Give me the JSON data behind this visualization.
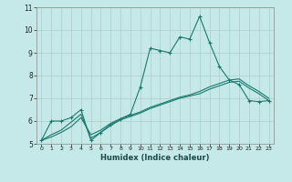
{
  "xlabel": "Humidex (Indice chaleur)",
  "background_color": "#c5e8e8",
  "grid_color": "#b0cccc",
  "line_color": "#1a7a6e",
  "xlim": [
    -0.5,
    23.5
  ],
  "ylim": [
    5,
    11
  ],
  "xticks": [
    0,
    1,
    2,
    3,
    4,
    5,
    6,
    7,
    8,
    9,
    10,
    11,
    12,
    13,
    14,
    15,
    16,
    17,
    18,
    19,
    20,
    21,
    22,
    23
  ],
  "yticks": [
    5,
    6,
    7,
    8,
    9,
    10,
    11
  ],
  "series1_x": [
    0,
    1,
    2,
    3,
    4,
    5,
    6,
    7,
    8,
    9,
    10,
    11,
    12,
    13,
    14,
    15,
    16,
    17,
    18,
    19,
    20,
    21,
    22,
    23
  ],
  "series1_y": [
    5.15,
    6.0,
    6.0,
    6.15,
    6.5,
    5.15,
    5.5,
    5.85,
    6.1,
    6.3,
    7.5,
    9.2,
    9.1,
    9.0,
    9.7,
    9.6,
    10.6,
    9.45,
    8.4,
    7.8,
    7.6,
    6.9,
    6.85,
    6.9
  ],
  "series2_x": [
    0,
    1,
    2,
    3,
    4,
    5,
    6,
    7,
    8,
    9,
    10,
    11,
    12,
    13,
    14,
    15,
    16,
    17,
    18,
    19,
    20,
    21,
    22,
    23
  ],
  "series2_y": [
    5.15,
    5.3,
    5.5,
    5.75,
    6.15,
    5.4,
    5.6,
    5.9,
    6.1,
    6.25,
    6.4,
    6.6,
    6.75,
    6.9,
    7.05,
    7.15,
    7.3,
    7.5,
    7.65,
    7.8,
    7.85,
    7.55,
    7.3,
    7.0
  ],
  "series3_x": [
    0,
    1,
    2,
    3,
    4,
    5,
    6,
    7,
    8,
    9,
    10,
    11,
    12,
    13,
    14,
    15,
    16,
    17,
    18,
    19,
    20,
    21,
    22,
    23
  ],
  "series3_y": [
    5.15,
    5.4,
    5.6,
    5.95,
    6.3,
    5.25,
    5.5,
    5.8,
    6.05,
    6.2,
    6.35,
    6.55,
    6.7,
    6.85,
    7.0,
    7.1,
    7.2,
    7.4,
    7.55,
    7.7,
    7.75,
    7.45,
    7.2,
    6.9
  ]
}
